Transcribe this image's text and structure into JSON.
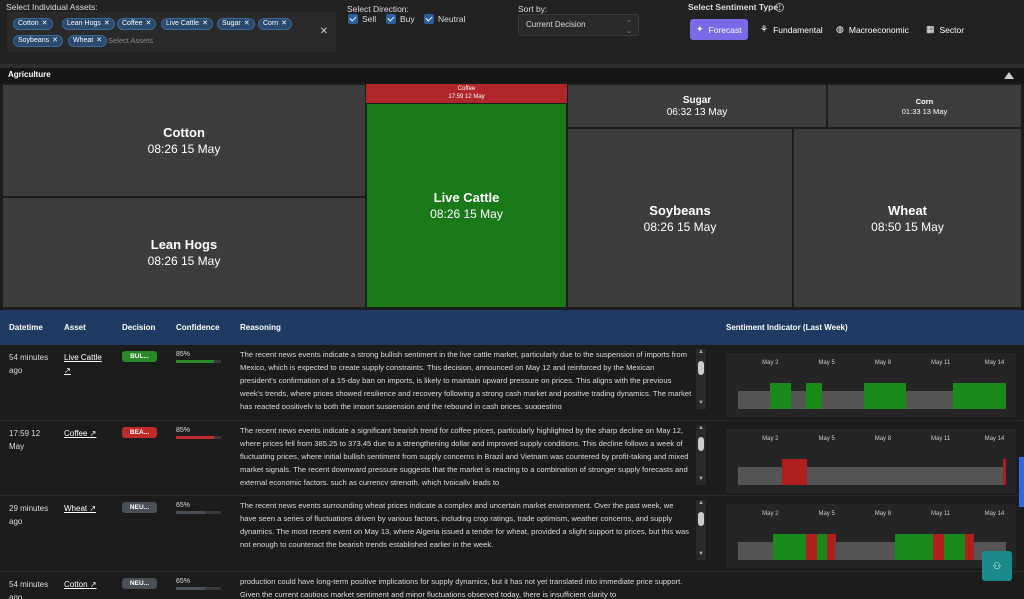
{
  "filters": {
    "assets_label": "Select Individual Assets:",
    "assets": [
      "Cotton",
      "Lean Hogs",
      "Coffee",
      "Live Cattle",
      "Sugar",
      "Corn",
      "Soybeans",
      "Wheat"
    ],
    "assets_placeholder": "Select Assets",
    "direction_label": "Select Direction:",
    "directions": [
      "Sell",
      "Buy",
      "Neutral"
    ],
    "sort_label": "Sort by:",
    "sort_value": "Current Decision",
    "sentiment_label": "Select Sentiment Type:",
    "sentiment_types": [
      "Forecast",
      "Fundamental",
      "Macroeconomic",
      "Sector"
    ],
    "sentiment_active": "Forecast"
  },
  "section": {
    "title": "Agriculture"
  },
  "treemap": [
    {
      "name": "Cotton",
      "time": "08:26 15 May",
      "color": "gray"
    },
    {
      "name": "Lean Hogs",
      "time": "08:26 15 May",
      "color": "gray"
    },
    {
      "name": "Coffee",
      "time": "17:59 12 May",
      "color": "red"
    },
    {
      "name": "Live Cattle",
      "time": "08:26 15 May",
      "color": "green"
    },
    {
      "name": "Sugar",
      "time": "06:32 13 May",
      "color": "gray"
    },
    {
      "name": "Corn",
      "time": "01:33 13 May",
      "color": "gray"
    },
    {
      "name": "Soybeans",
      "time": "08:26 15 May",
      "color": "gray"
    },
    {
      "name": "Wheat",
      "time": "08:50 15 May",
      "color": "gray"
    }
  ],
  "table": {
    "headers": [
      "Datetime",
      "Asset",
      "Decision",
      "Confidence",
      "Reasoning",
      "Sentiment Indicator (Last Week)"
    ],
    "rows": [
      {
        "datetime": "54 minutes ago",
        "asset": "Live Cattle",
        "decision": "BUL...",
        "decision_type": "bull",
        "confidence": "85%",
        "confidence_value": 0.85,
        "reasoning": "The recent news events indicate a strong bullish sentiment in the live cattle market, particularly due to the suspension of imports from Mexico, which is expected to create supply constraints. This decision, announced on May 12 and reinforced by the Mexican president's confirmation of a 15-day ban on imports, is likely to maintain upward pressure on prices. This aligns with the previous week's trends, where prices showed resilience and recovery following a strong cash market and positive trading dynamics. The market has reacted positively to both the import suspension and the rebound in cash prices, suggesting"
      },
      {
        "datetime": "17:59 12 May",
        "asset": "Coffee",
        "decision": "BEA...",
        "decision_type": "bear",
        "confidence": "85%",
        "confidence_value": 0.85,
        "reasoning": "The recent news events indicate a significant bearish trend for coffee prices, particularly highlighted by the sharp decline on May 12, where prices fell from 385.25 to 373.45 due to a strengthening dollar and improved supply conditions. This decline follows a week of fluctuating prices, where initial bullish sentiment from supply concerns in Brazil and Vietnam was countered by profit-taking and mixed market signals. The recent downward pressure suggests that the market is reacting to a combination of stronger supply forecasts and external economic factors, such as currency strength, which typically leads to"
      },
      {
        "datetime": "29 minutes ago",
        "asset": "Wheat",
        "decision": "NEU...",
        "decision_type": "neu",
        "confidence": "65%",
        "confidence_value": 0.65,
        "reasoning": "The recent news events surrounding wheat prices indicate a complex and uncertain market environment. Over the past week, we have seen a series of fluctuations driven by various factors, including crop ratings, trade optimism, weather concerns, and supply dynamics. The most recent event on May 13, where Algeria issued a tender for wheat, provided a slight support to prices, but this was not enough to counteract the bearish trends established earlier in the week."
      },
      {
        "datetime": "54 minutes ago",
        "asset": "Cotton",
        "decision": "NEU...",
        "decision_type": "neu",
        "confidence": "65%",
        "confidence_value": 0.65,
        "reasoning": "production could have long-term positive implications for supply dynamics, but it has not yet translated into immediate price support. Given the current cautious market sentiment and minor fluctuations observed today, there is insufficient clarity to"
      }
    ]
  },
  "sentiment_dates": [
    "May 2",
    "May 5",
    "May 8",
    "May 11",
    "May 14"
  ],
  "sentiment_charts": [
    {
      "bars": [
        "gray",
        "gray",
        "gray",
        "gray",
        "gray",
        "gray",
        "gray",
        "gray",
        "gray",
        "gray",
        "gray",
        "gray",
        "green",
        "green",
        "green",
        "green",
        "green",
        "green",
        "green",
        "green",
        "gray",
        "gray",
        "gray",
        "gray",
        "gray",
        "gray",
        "green",
        "green",
        "green",
        "green",
        "green",
        "green",
        "gray",
        "gray",
        "gray",
        "gray",
        "gray",
        "gray",
        "gray",
        "gray",
        "gray",
        "gray",
        "gray",
        "gray",
        "gray",
        "gray",
        "gray",
        "gray",
        "green",
        "green",
        "green",
        "green",
        "green",
        "green",
        "green",
        "green",
        "green",
        "green",
        "green",
        "green",
        "green",
        "green",
        "green",
        "green",
        "gray",
        "gray",
        "gray",
        "gray",
        "gray",
        "gray",
        "gray",
        "gray",
        "gray",
        "gray",
        "gray",
        "gray",
        "gray",
        "gray",
        "gray",
        "gray",
        "gray",
        "gray",
        "green",
        "green",
        "green",
        "green",
        "green",
        "green",
        "green",
        "green",
        "green",
        "green",
        "green",
        "green",
        "green",
        "green",
        "green",
        "green",
        "green",
        "green",
        "green",
        "green"
      ]
    },
    {
      "bars": [
        "gray",
        "gray",
        "gray",
        "gray",
        "gray",
        "gray",
        "gray",
        "gray",
        "gray",
        "gray",
        "gray",
        "gray",
        "gray",
        "gray",
        "gray",
        "gray",
        "red",
        "red",
        "red",
        "red",
        "red",
        "red",
        "red",
        "red",
        "red",
        "gray",
        "gray",
        "gray",
        "gray",
        "gray",
        "gray",
        "gray",
        "gray",
        "gray",
        "gray",
        "gray",
        "gray",
        "gray",
        "gray",
        "gray",
        "gray",
        "gray",
        "gray",
        "gray",
        "gray",
        "gray",
        "gray",
        "gray",
        "gray",
        "gray",
        "gray",
        "gray",
        "gray",
        "gray",
        "gray",
        "gray",
        "gray",
        "gray",
        "gray",
        "gray",
        "gray",
        "gray",
        "gray",
        "gray",
        "gray",
        "gray",
        "gray",
        "gray",
        "gray",
        "gray",
        "gray",
        "gray",
        "gray",
        "gray",
        "gray",
        "gray",
        "gray",
        "gray",
        "gray",
        "gray",
        "gray",
        "gray",
        "gray",
        "gray",
        "gray",
        "gray",
        "gray",
        "gray",
        "gray",
        "gray",
        "gray",
        "gray",
        "gray",
        "gray",
        "gray",
        "gray",
        "red"
      ]
    },
    {
      "bars": [
        "gray",
        "gray",
        "gray",
        "gray",
        "gray",
        "gray",
        "gray",
        "gray",
        "gray",
        "gray",
        "gray",
        "gray",
        "gray",
        "green",
        "green",
        "green",
        "green",
        "green",
        "green",
        "green",
        "green",
        "green",
        "green",
        "green",
        "green",
        "red",
        "red",
        "red",
        "red",
        "green",
        "green",
        "green",
        "green",
        "red",
        "red",
        "red",
        "gray",
        "gray",
        "gray",
        "gray",
        "gray",
        "gray",
        "gray",
        "gray",
        "gray",
        "gray",
        "gray",
        "gray",
        "gray",
        "gray",
        "gray",
        "gray",
        "gray",
        "gray",
        "gray",
        "gray",
        "gray",
        "gray",
        "green",
        "green",
        "green",
        "green",
        "green",
        "green",
        "green",
        "green",
        "green",
        "green",
        "green",
        "green",
        "green",
        "green",
        "red",
        "red",
        "red",
        "red",
        "green",
        "green",
        "green",
        "green",
        "green",
        "green",
        "green",
        "green",
        "red",
        "red",
        "red",
        "gray",
        "gray",
        "gray",
        "gray",
        "gray",
        "gray",
        "gray",
        "gray",
        "gray",
        "gray",
        "gray",
        "gray"
      ]
    }
  ],
  "colors": {
    "bull": "#2a8a2a",
    "bear": "#c02a2a",
    "neu": "#4a5058",
    "accent": "#7b6ae8",
    "header": "#1f3a63"
  }
}
